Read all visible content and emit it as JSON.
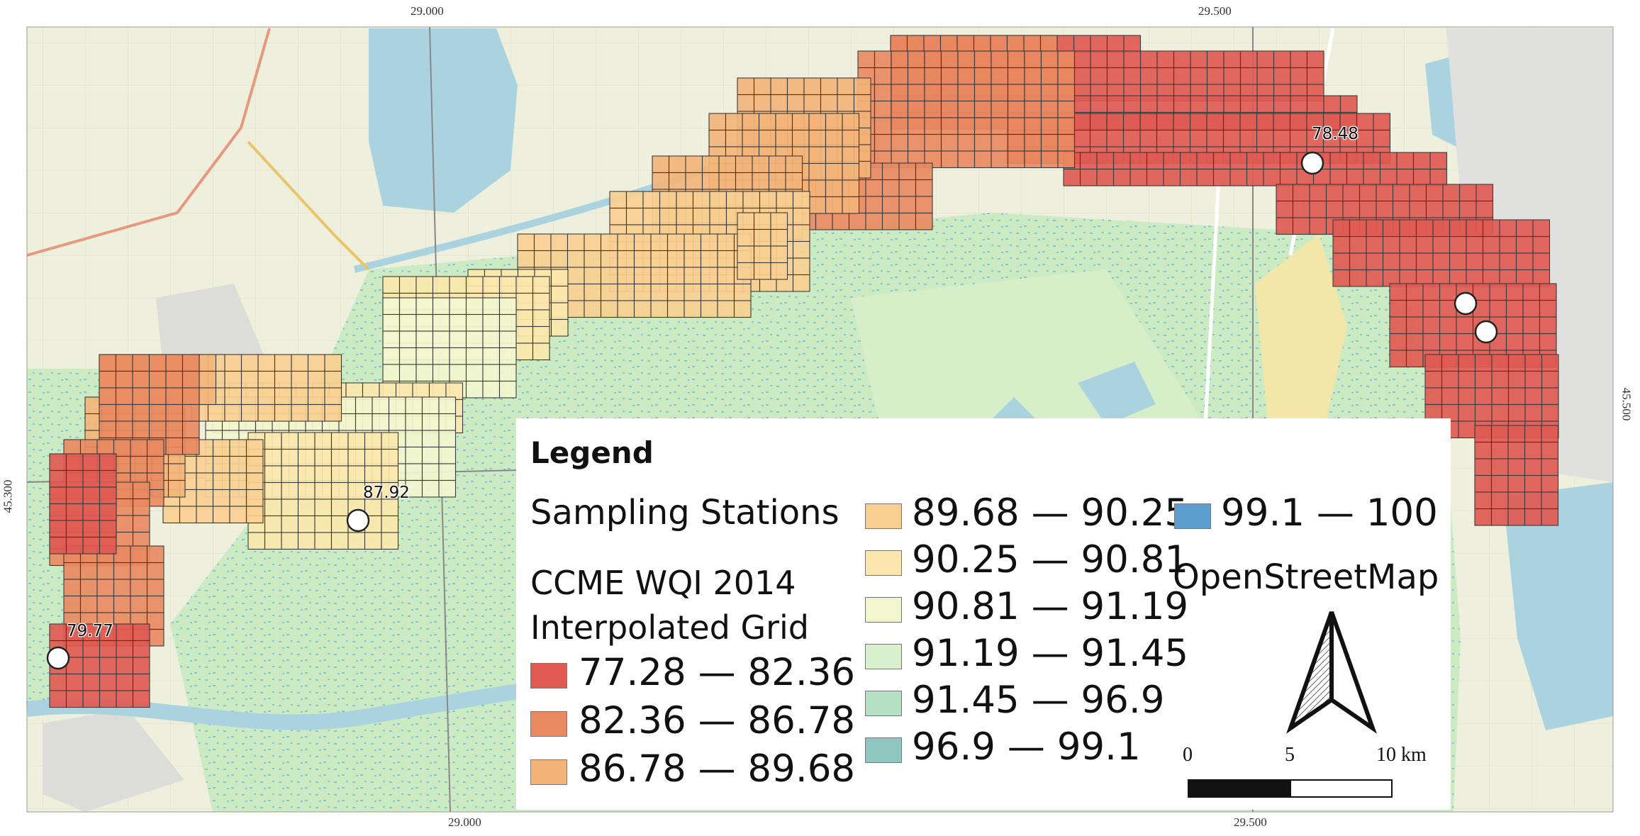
{
  "axes": {
    "x_ticks": [
      "29.000",
      "29.500"
    ],
    "y_ticks": [
      "45.300",
      "45.500"
    ]
  },
  "stations": [
    {
      "label": "78.48"
    },
    {
      "label": "87.92"
    },
    {
      "label": "79.77"
    },
    {
      "label": ""
    },
    {
      "label": ""
    }
  ],
  "legend": {
    "title": "Legend",
    "stations_layer": "Sampling Stations",
    "grid_layer_line1": "CCME WQI 2014",
    "grid_layer_line2": "Interpolated Grid",
    "classes": [
      {
        "label": "77.28 — 82.36",
        "color": "#e05a52"
      },
      {
        "label": "82.36 — 86.78",
        "color": "#e98a62"
      },
      {
        "label": "86.78 — 89.68",
        "color": "#f3b479"
      },
      {
        "label": "89.68 — 90.25",
        "color": "#f8cf91"
      },
      {
        "label": "90.25 — 90.81",
        "color": "#fbe7ad"
      },
      {
        "label": "90.81 — 91.19",
        "color": "#f2f6cf"
      },
      {
        "label": "91.19 — 91.45",
        "color": "#d9f0cd"
      },
      {
        "label": "91.45 — 96.9",
        "color": "#b6e0c4"
      },
      {
        "label": "96.9 — 99.1",
        "color": "#8fc7c0"
      },
      {
        "label": "99.1 — 100",
        "color": "#5e9fcf"
      }
    ],
    "basemap": "OpenStreetMap",
    "scale": {
      "zero": "0",
      "mid": "5",
      "end": "10 km"
    }
  },
  "north_arrow": {
    "icon": "north-arrow-icon"
  }
}
